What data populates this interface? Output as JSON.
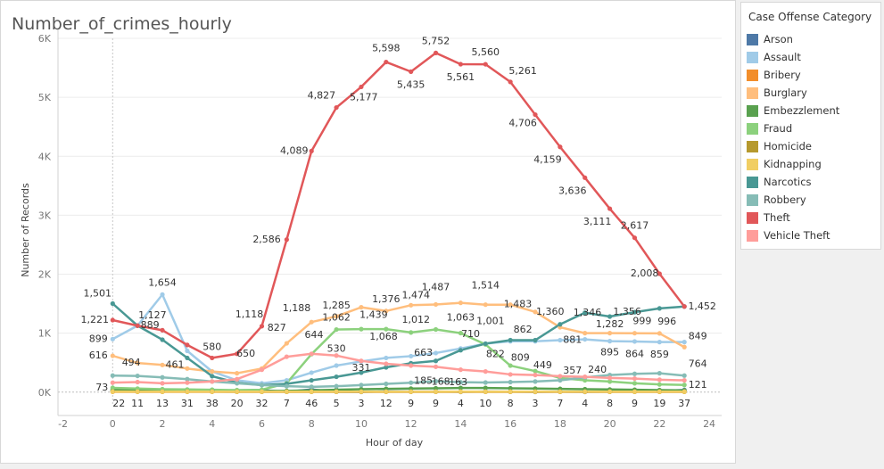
{
  "chart_data": {
    "type": "line",
    "title": "Number_of_crimes_hourly",
    "xlabel": "Hour of day",
    "ylabel": "Number of Records",
    "xlim": [
      -2.2,
      24.5
    ],
    "ylim": [
      -200,
      6000
    ],
    "xticks": [
      "-2",
      "0",
      "2",
      "4",
      "6",
      "8",
      "10",
      "12",
      "14",
      "16",
      "18",
      "20",
      "22",
      "24"
    ],
    "xtick_values": [
      -2,
      0,
      2,
      4,
      6,
      8,
      10,
      12,
      14,
      16,
      18,
      20,
      22,
      24
    ],
    "yticks": [
      "0K",
      "1K",
      "2K",
      "3K",
      "4K",
      "5K",
      "6K"
    ],
    "ytick_values": [
      0,
      1000,
      2000,
      3000,
      4000,
      5000,
      6000
    ],
    "x": [
      0,
      1,
      2,
      3,
      4,
      5,
      6,
      7,
      8,
      9,
      10,
      11,
      12,
      13,
      14,
      15,
      16,
      17,
      18,
      19,
      20,
      21,
      22,
      23
    ],
    "legend_title": "Case Offense Category",
    "legend_position": "right",
    "series": [
      {
        "name": "Arson",
        "color": "#4e79a7",
        "values": [
          22,
          11,
          13,
          31,
          38,
          20,
          32,
          7,
          46,
          5,
          3,
          12,
          9,
          9,
          4,
          10,
          8,
          3,
          8,
          4,
          8,
          9,
          19,
          37
        ]
      },
      {
        "name": "Assault",
        "color": "#a0cbe8",
        "values": [
          899,
          1127,
          1654,
          700,
          350,
          200,
          150,
          200,
          330,
          450,
          520,
          580,
          610,
          663,
          740,
          822,
          862,
          862,
          881,
          895,
          864,
          859,
          849,
          849
        ]
      },
      {
        "name": "Bribery",
        "color": "#f28e2b",
        "values": [
          5,
          5,
          5,
          5,
          5,
          5,
          5,
          5,
          5,
          5,
          5,
          5,
          5,
          5,
          5,
          5,
          5,
          5,
          5,
          5,
          5,
          5,
          5,
          5
        ]
      },
      {
        "name": "Burglary",
        "color": "#ffbe7d",
        "values": [
          616,
          494,
          461,
          400,
          350,
          320,
          400,
          827,
          1188,
          1285,
          1439,
          1376,
          1474,
          1487,
          1514,
          1483,
          1483,
          1360,
          1100,
          1000,
          1000,
          999,
          996,
          764
        ]
      },
      {
        "name": "Embezzlement",
        "color": "#59a14f",
        "values": [
          40,
          35,
          30,
          25,
          22,
          20,
          20,
          22,
          30,
          40,
          50,
          55,
          60,
          65,
          70,
          70,
          65,
          60,
          55,
          50,
          45,
          40,
          35,
          30
        ]
      },
      {
        "name": "Fraud",
        "color": "#8cd17d",
        "values": [
          73,
          60,
          50,
          45,
          40,
          35,
          40,
          150,
          644,
          1062,
          1068,
          1068,
          1012,
          1063,
          1001,
          809,
          449,
          357,
          240,
          200,
          180,
          150,
          130,
          121
        ]
      },
      {
        "name": "Homicide",
        "color": "#b6992d",
        "values": [
          10,
          8,
          8,
          8,
          8,
          6,
          6,
          6,
          6,
          6,
          6,
          6,
          6,
          6,
          6,
          6,
          6,
          6,
          6,
          6,
          6,
          6,
          6,
          6
        ]
      },
      {
        "name": "Kidnapping",
        "color": "#f1ce63",
        "values": [
          8,
          8,
          8,
          8,
          8,
          8,
          8,
          8,
          8,
          8,
          8,
          8,
          8,
          8,
          8,
          8,
          8,
          8,
          8,
          8,
          8,
          8,
          8,
          8
        ]
      },
      {
        "name": "Narcotics",
        "color": "#499894",
        "values": [
          1501,
          1127,
          889,
          580,
          270,
          160,
          120,
          140,
          200,
          260,
          331,
          420,
          490,
          530,
          710,
          822,
          881,
          881,
          1150,
          1346,
          1282,
          1356,
          1420,
          1452
        ]
      },
      {
        "name": "Robbery",
        "color": "#86bcb6",
        "values": [
          280,
          275,
          250,
          220,
          180,
          150,
          120,
          100,
          90,
          100,
          120,
          140,
          160,
          185,
          168,
          163,
          170,
          180,
          200,
          250,
          290,
          310,
          320,
          280
        ]
      },
      {
        "name": "Theft",
        "color": "#e15759",
        "values": [
          1221,
          1127,
          1050,
          800,
          580,
          650,
          1118,
          2586,
          4089,
          4827,
          5177,
          5598,
          5435,
          5752,
          5561,
          5560,
          5261,
          4706,
          4159,
          3636,
          3111,
          2617,
          2008,
          1452
        ]
      },
      {
        "name": "Vehicle Theft",
        "color": "#ff9d9a",
        "values": [
          160,
          170,
          150,
          160,
          180,
          220,
          380,
          600,
          650,
          620,
          530,
          480,
          450,
          430,
          380,
          350,
          300,
          290,
          270,
          260,
          240,
          230,
          210,
          200
        ]
      }
    ],
    "data_labels": [
      {
        "text": "1,501",
        "x": 0,
        "y": 1501,
        "dx": -17,
        "dy": -8
      },
      {
        "text": "1,221",
        "x": 0,
        "y": 1221,
        "dx": -20,
        "dy": 3
      },
      {
        "text": "899",
        "x": 0,
        "y": 899,
        "dx": -16,
        "dy": 3
      },
      {
        "text": "616",
        "x": 0,
        "y": 616,
        "dx": -16,
        "dy": 3
      },
      {
        "text": "494",
        "x": 0.75,
        "y": 494,
        "dx": 0,
        "dy": 3
      },
      {
        "text": "73",
        "x": 0,
        "y": 73,
        "dx": -12,
        "dy": 3
      },
      {
        "text": "22",
        "x": 0.25,
        "y": 0,
        "dx": 0,
        "dy": 16
      },
      {
        "text": "11",
        "x": 1,
        "y": 0,
        "dx": 0,
        "dy": 16
      },
      {
        "text": "1,654",
        "x": 2,
        "y": 1654,
        "dx": 0,
        "dy": -10
      },
      {
        "text": "1,127",
        "x": 1.6,
        "y": 1127,
        "dx": 0,
        "dy": -8
      },
      {
        "text": "889",
        "x": 1.5,
        "y": 889,
        "dx": 0,
        "dy": -13
      },
      {
        "text": "461",
        "x": 2.5,
        "y": 461,
        "dx": 0,
        "dy": 3
      },
      {
        "text": "13",
        "x": 2,
        "y": 0,
        "dx": 0,
        "dy": 16
      },
      {
        "text": "31",
        "x": 3,
        "y": 0,
        "dx": 0,
        "dy": 16
      },
      {
        "text": "580",
        "x": 4,
        "y": 580,
        "dx": 0,
        "dy": -9
      },
      {
        "text": "38",
        "x": 4,
        "y": 0,
        "dx": 0,
        "dy": 16
      },
      {
        "text": "650",
        "x": 5,
        "y": 650,
        "dx": 10,
        "dy": 3
      },
      {
        "text": "20",
        "x": 5,
        "y": 0,
        "dx": 0,
        "dy": 16
      },
      {
        "text": "1,118",
        "x": 5.5,
        "y": 1118,
        "dx": 0,
        "dy": -10
      },
      {
        "text": "32",
        "x": 6,
        "y": 0,
        "dx": 0,
        "dy": 16
      },
      {
        "text": "2,586",
        "x": 6.2,
        "y": 2586,
        "dx": 0,
        "dy": 3
      },
      {
        "text": "827",
        "x": 6.6,
        "y": 827,
        "dx": 0,
        "dy": -14
      },
      {
        "text": "7",
        "x": 7,
        "y": 0,
        "dx": 0,
        "dy": 16
      },
      {
        "text": "4,089",
        "x": 7.3,
        "y": 4089,
        "dx": 0,
        "dy": 3
      },
      {
        "text": "1,188",
        "x": 7.4,
        "y": 1188,
        "dx": 0,
        "dy": -12
      },
      {
        "text": "644",
        "x": 8.1,
        "y": 644,
        "dx": 0,
        "dy": -18
      },
      {
        "text": "46",
        "x": 8,
        "y": 0,
        "dx": 0,
        "dy": 16
      },
      {
        "text": "4,827",
        "x": 8.4,
        "y": 4827,
        "dx": 0,
        "dy": -10
      },
      {
        "text": "1,285",
        "x": 9,
        "y": 1285,
        "dx": 0,
        "dy": -9
      },
      {
        "text": "1,062",
        "x": 9,
        "y": 1062,
        "dx": 0,
        "dy": -10
      },
      {
        "text": "530",
        "x": 9,
        "y": 530,
        "dx": 0,
        "dy": -10
      },
      {
        "text": "5",
        "x": 9,
        "y": 0,
        "dx": 0,
        "dy": 16
      },
      {
        "text": "5,177",
        "x": 10.1,
        "y": 5177,
        "dx": 0,
        "dy": 15
      },
      {
        "text": "1,439",
        "x": 10.5,
        "y": 1439,
        "dx": 0,
        "dy": 12
      },
      {
        "text": "1,068",
        "x": 10.9,
        "y": 1068,
        "dx": 0,
        "dy": 12
      },
      {
        "text": "331",
        "x": 10,
        "y": 331,
        "dx": 0,
        "dy": -2
      },
      {
        "text": "3",
        "x": 10,
        "y": 0,
        "dx": 0,
        "dy": 16
      },
      {
        "text": "5,598",
        "x": 11,
        "y": 5598,
        "dx": 0,
        "dy": -12
      },
      {
        "text": "1,376",
        "x": 11,
        "y": 1376,
        "dx": 0,
        "dy": -10
      },
      {
        "text": "12",
        "x": 11,
        "y": 0,
        "dx": 0,
        "dy": 16
      },
      {
        "text": "5,435",
        "x": 12,
        "y": 5435,
        "dx": 0,
        "dy": 18
      },
      {
        "text": "1,474",
        "x": 12.2,
        "y": 1474,
        "dx": 0,
        "dy": -8
      },
      {
        "text": "1,012",
        "x": 12.2,
        "y": 1012,
        "dx": 0,
        "dy": -11
      },
      {
        "text": "185",
        "x": 12.5,
        "y": 185,
        "dx": 0,
        "dy": 3
      },
      {
        "text": "9",
        "x": 12,
        "y": 0,
        "dx": 0,
        "dy": 16
      },
      {
        "text": "5,752",
        "x": 13,
        "y": 5752,
        "dx": 0,
        "dy": -10
      },
      {
        "text": "1,487",
        "x": 13,
        "y": 1487,
        "dx": 0,
        "dy": -16
      },
      {
        "text": "663",
        "x": 12.5,
        "y": 663,
        "dx": 0,
        "dy": 3
      },
      {
        "text": "168",
        "x": 13.2,
        "y": 168,
        "dx": 0,
        "dy": 3
      },
      {
        "text": "9",
        "x": 13,
        "y": 0,
        "dx": 0,
        "dy": 16
      },
      {
        "text": "5,561",
        "x": 14,
        "y": 5561,
        "dx": 0,
        "dy": 18
      },
      {
        "text": "1,063",
        "x": 14,
        "y": 1063,
        "dx": 0,
        "dy": -10
      },
      {
        "text": "710",
        "x": 14.4,
        "y": 710,
        "dx": 0,
        "dy": -15
      },
      {
        "text": "163",
        "x": 13.9,
        "y": 163,
        "dx": 0,
        "dy": 3
      },
      {
        "text": "4",
        "x": 14,
        "y": 0,
        "dx": 0,
        "dy": 16
      },
      {
        "text": "5,560",
        "x": 15,
        "y": 5560,
        "dx": 0,
        "dy": -10
      },
      {
        "text": "1,514",
        "x": 15,
        "y": 1514,
        "dx": 0,
        "dy": -16
      },
      {
        "text": "1,001",
        "x": 15.2,
        "y": 1001,
        "dx": 0,
        "dy": -10
      },
      {
        "text": "822",
        "x": 15.4,
        "y": 822,
        "dx": 0,
        "dy": 15
      },
      {
        "text": "10",
        "x": 15,
        "y": 0,
        "dx": 0,
        "dy": 16
      },
      {
        "text": "5,261",
        "x": 16.5,
        "y": 5261,
        "dx": 0,
        "dy": -9
      },
      {
        "text": "1,483",
        "x": 16.3,
        "y": 1483,
        "dx": 0,
        "dy": 3
      },
      {
        "text": "862",
        "x": 16.5,
        "y": 862,
        "dx": 0,
        "dy": -10
      },
      {
        "text": "809",
        "x": 16.4,
        "y": 809,
        "dx": 0,
        "dy": 18
      },
      {
        "text": "8",
        "x": 16,
        "y": 0,
        "dx": 0,
        "dy": 16
      },
      {
        "text": "4,706",
        "x": 16.5,
        "y": 4706,
        "dx": 0,
        "dy": 13
      },
      {
        "text": "1,360",
        "x": 17.6,
        "y": 1360,
        "dx": 0,
        "dy": 3
      },
      {
        "text": "449",
        "x": 17.3,
        "y": 449,
        "dx": 0,
        "dy": 3
      },
      {
        "text": "3",
        "x": 17,
        "y": 0,
        "dx": 0,
        "dy": 16
      },
      {
        "text": "4,159",
        "x": 17.5,
        "y": 4159,
        "dx": 0,
        "dy": 18
      },
      {
        "text": "881",
        "x": 18.5,
        "y": 881,
        "dx": 0,
        "dy": 3
      },
      {
        "text": "357",
        "x": 18.5,
        "y": 357,
        "dx": 0,
        "dy": 3
      },
      {
        "text": "7",
        "x": 18,
        "y": 0,
        "dx": 0,
        "dy": 16
      },
      {
        "text": "3,636",
        "x": 18.5,
        "y": 3636,
        "dx": 0,
        "dy": 18
      },
      {
        "text": "1,346",
        "x": 19.1,
        "y": 1346,
        "dx": 0,
        "dy": 3
      },
      {
        "text": "240",
        "x": 19.5,
        "y": 240,
        "dx": 0,
        "dy": -6
      },
      {
        "text": "4",
        "x": 19,
        "y": 0,
        "dx": 0,
        "dy": 16
      },
      {
        "text": "3,111",
        "x": 19.5,
        "y": 3111,
        "dx": 0,
        "dy": 18
      },
      {
        "text": "1,282",
        "x": 20,
        "y": 1282,
        "dx": 0,
        "dy": 12
      },
      {
        "text": "895",
        "x": 20,
        "y": 895,
        "dx": 0,
        "dy": 18
      },
      {
        "text": "8",
        "x": 20,
        "y": 0,
        "dx": 0,
        "dy": 16
      },
      {
        "text": "2,617",
        "x": 21,
        "y": 2617,
        "dx": 0,
        "dy": -10
      },
      {
        "text": "1,356",
        "x": 20.7,
        "y": 1356,
        "dx": 0,
        "dy": 3
      },
      {
        "text": "999",
        "x": 21.3,
        "y": 999,
        "dx": 0,
        "dy": -10
      },
      {
        "text": "864",
        "x": 21,
        "y": 864,
        "dx": 0,
        "dy": 18
      },
      {
        "text": "9",
        "x": 21,
        "y": 0,
        "dx": 0,
        "dy": 16
      },
      {
        "text": "2,008",
        "x": 21.4,
        "y": 2008,
        "dx": 0,
        "dy": 3
      },
      {
        "text": "996",
        "x": 22.3,
        "y": 996,
        "dx": 0,
        "dy": -10
      },
      {
        "text": "859",
        "x": 22,
        "y": 859,
        "dx": 0,
        "dy": 18
      },
      {
        "text": "19",
        "x": 22,
        "y": 0,
        "dx": 0,
        "dy": 16
      },
      {
        "text": "1,452",
        "x": 23,
        "y": 1452,
        "dx": 20,
        "dy": 3
      },
      {
        "text": "849",
        "x": 23,
        "y": 849,
        "dx": 15,
        "dy": -3
      },
      {
        "text": "764",
        "x": 23,
        "y": 764,
        "dx": 15,
        "dy": 22
      },
      {
        "text": "121",
        "x": 23,
        "y": 121,
        "dx": 15,
        "dy": 3
      },
      {
        "text": "37",
        "x": 23,
        "y": 0,
        "dx": 0,
        "dy": 16
      }
    ]
  }
}
